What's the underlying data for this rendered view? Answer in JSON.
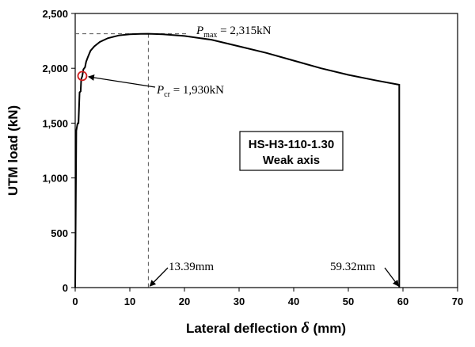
{
  "chart_data": {
    "type": "line",
    "xlabel": "Lateral deflection",
    "xlabel_symbol": "δ",
    "xlabel_unit": "(mm)",
    "ylabel": "UTM load (kN)",
    "xlim": [
      0,
      70
    ],
    "ylim": [
      0,
      2500
    ],
    "xticks": [
      "0",
      "10",
      "20",
      "30",
      "40",
      "50",
      "60",
      "70"
    ],
    "yticks": [
      "0",
      "500",
      "1,000",
      "1,500",
      "2,000",
      "2,500"
    ],
    "grid": false,
    "legend": "none",
    "series": [
      {
        "color": "#000000",
        "x": [
          0.0,
          0.2,
          0.4,
          0.5,
          0.6,
          0.8,
          1.0,
          1.1,
          1.3,
          1.5,
          1.8,
          2.0,
          2.3,
          2.8,
          3.5,
          4.5,
          6.0,
          8.0,
          10.0,
          12.0,
          13.39,
          16.0,
          20.0,
          25.0,
          30.0,
          35.0,
          40.0,
          45.0,
          50.0,
          55.0,
          59.32,
          59.32
        ],
        "y": [
          0,
          1430,
          1490,
          1500,
          1500,
          1780,
          1790,
          1900,
          1930,
          1990,
          2010,
          2060,
          2100,
          2160,
          2200,
          2240,
          2275,
          2300,
          2310,
          2314,
          2315,
          2310,
          2295,
          2260,
          2200,
          2140,
          2070,
          2000,
          1940,
          1890,
          1850,
          0
        ]
      }
    ],
    "annotations": {
      "pmax": {
        "symbol": "P",
        "sub": "max",
        "text": " = 2,315kN",
        "x": 13.39,
        "y": 2315
      },
      "pcr": {
        "symbol": "P",
        "sub": "cr",
        "text": " = 1,930kN",
        "x": 1.3,
        "y": 1930
      },
      "d1": {
        "text": "13.39mm",
        "x": 13.39
      },
      "d2": {
        "text": "59.32mm",
        "x": 59.32
      }
    },
    "box": {
      "line1": "HS-H3-110-1.30",
      "line2": "Weak axis"
    }
  }
}
